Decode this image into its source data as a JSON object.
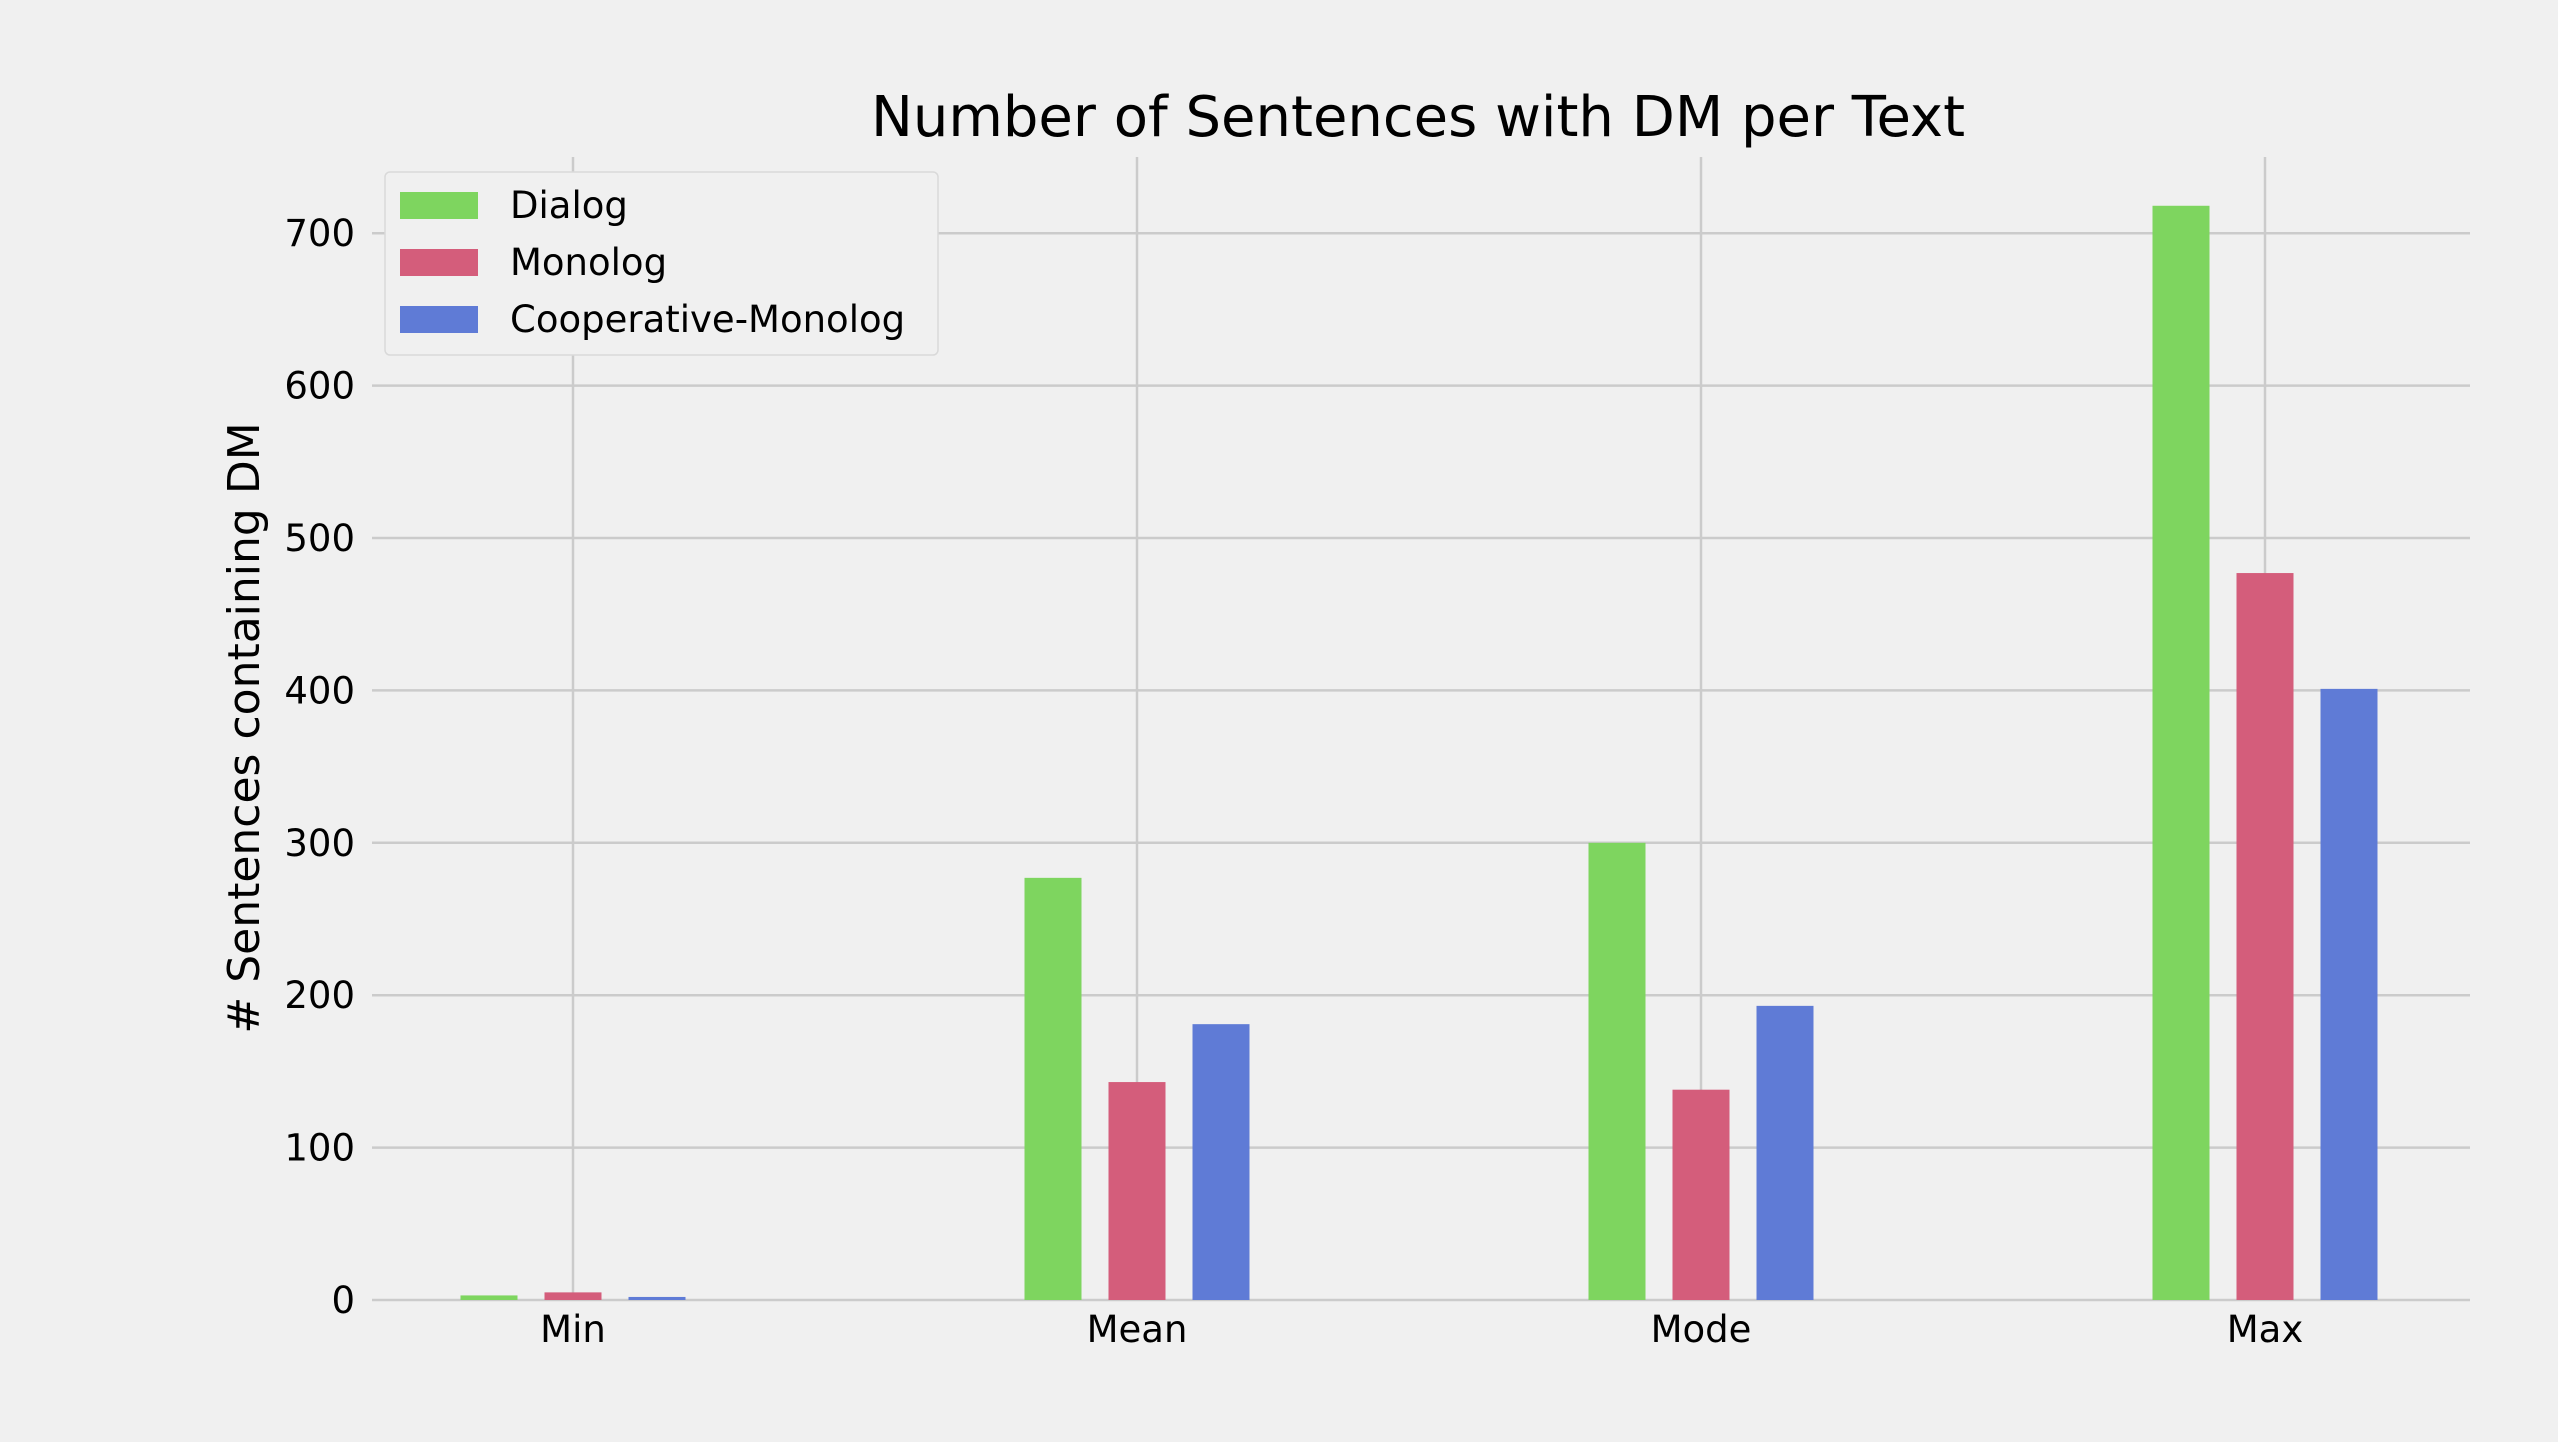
{
  "chart_data": {
    "type": "bar",
    "title": "Number of Sentences with DM per Text",
    "xlabel": "",
    "ylabel": "# Sentences containing DM",
    "categories": [
      "Min",
      "Mean",
      "Mode",
      "Max"
    ],
    "series": [
      {
        "name": "Dialog",
        "color": "#7ed55f",
        "values": [
          3,
          277,
          300,
          718
        ]
      },
      {
        "name": "Monolog",
        "color": "#d45d7b",
        "values": [
          5,
          143,
          138,
          477
        ]
      },
      {
        "name": "Cooperative-Monolog",
        "color": "#5f7bd6",
        "values": [
          2,
          181,
          193,
          401
        ]
      }
    ],
    "ylim": [
      0,
      750
    ],
    "yticks": [
      0,
      100,
      200,
      300,
      400,
      500,
      600,
      700
    ],
    "grid": true,
    "legend_position": "top-left"
  }
}
